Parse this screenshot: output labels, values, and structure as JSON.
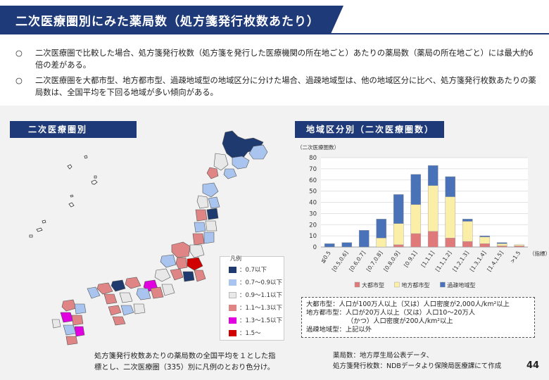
{
  "header": {
    "title": "二次医療圏別にみた薬局数（処方箋発行枚数あたり）"
  },
  "bullets": [
    {
      "mark": "○",
      "text": "二次医療圏で比較した場合、処方箋発行枚数（処方箋を発行した医療機関の所在地ごと）あたりの薬局数（薬局の所在地ごと）には最大約6倍の差がある。"
    },
    {
      "mark": "○",
      "text": "二次医療圏を大都市型、地方都市型、過疎地域型の地域区分に分けた場合、過疎地域型は、他の地域区分に比べ、処方箋発行枚数あたりの薬局数は、全国平均を下回る地域が多い傾向がある。"
    }
  ],
  "left_section": {
    "label": "二次医療圏別",
    "legend_title": "凡例",
    "legend": [
      {
        "label": "：0.7以下",
        "color": "#1f3a6e"
      },
      {
        "label": "：0.7～0.9以下",
        "color": "#a9c4ee"
      },
      {
        "label": "：0.9～1.1以下",
        "color": "#e8e8e8"
      },
      {
        "label": "：1.1～1.3以下",
        "color": "#e08585"
      },
      {
        "label": "：1.3～1.5以下",
        "color": "#e000e0"
      },
      {
        "label": "：1.5～",
        "color": "#d00000"
      }
    ],
    "note_line1": "処方箋発行枚数あたりの薬局数の全国平均を１とした指",
    "note_line2": "標とし、二次医療圏（335）別に凡例のとおり色分け。"
  },
  "right_section": {
    "label": "地域区分別（二次医療圏数）"
  },
  "chart_data": {
    "type": "bar",
    "stacked": true,
    "unit_label": "（二次医療圏数）",
    "x_unit": "（指標）",
    "categories": [
      "≦0.5",
      "[0.5,0.6]",
      "[0.6,0.7]",
      "[0.7,0.8]",
      "[0.8,0.9]",
      "[0.9,1]",
      "[1,1.1]",
      "[1.1,1.2]",
      "[1.2,1.3]",
      "[1.3,1.4]",
      "[1.4,1.5]",
      ">1.5"
    ],
    "series": [
      {
        "name": "大都市型",
        "color": "#e07a7a",
        "values": [
          0,
          0,
          0,
          0,
          2,
          12,
          14,
          8,
          5,
          3,
          1,
          1
        ]
      },
      {
        "name": "地方都市型",
        "color": "#fbeea6",
        "values": [
          0,
          0,
          0,
          8,
          19,
          26,
          41,
          37,
          18,
          6,
          2,
          1
        ]
      },
      {
        "name": "過疎地域型",
        "color": "#4a72b8",
        "values": [
          3,
          4,
          15,
          17,
          26,
          27,
          18,
          18,
          2,
          1,
          1,
          0
        ]
      }
    ],
    "ylim": [
      0,
      80
    ],
    "yticks": [
      0,
      10,
      20,
      30,
      40,
      50,
      60,
      70,
      80
    ],
    "grid": true,
    "legend_position": "bottom"
  },
  "definitions": [
    {
      "label": "大都市型",
      "sep": "：",
      "text": "人口が100万人以上（又は）人口密度が2,000人/km²以上"
    },
    {
      "label": "地方都市型",
      "sep": "：",
      "text": "人口が20万人以上（又は）人口10～20万人"
    },
    {
      "label": "",
      "sep": "",
      "text": "（かつ）人口密度が200人/km²以上"
    },
    {
      "label": "過疎地域型",
      "sep": "：",
      "text": "上記以外"
    }
  ],
  "source": {
    "line1": "薬局数：地方厚生局公表データ、",
    "line2": "処方箋発行枚数：NDBデータより保険局医療課にて作成"
  },
  "page_number": "44"
}
